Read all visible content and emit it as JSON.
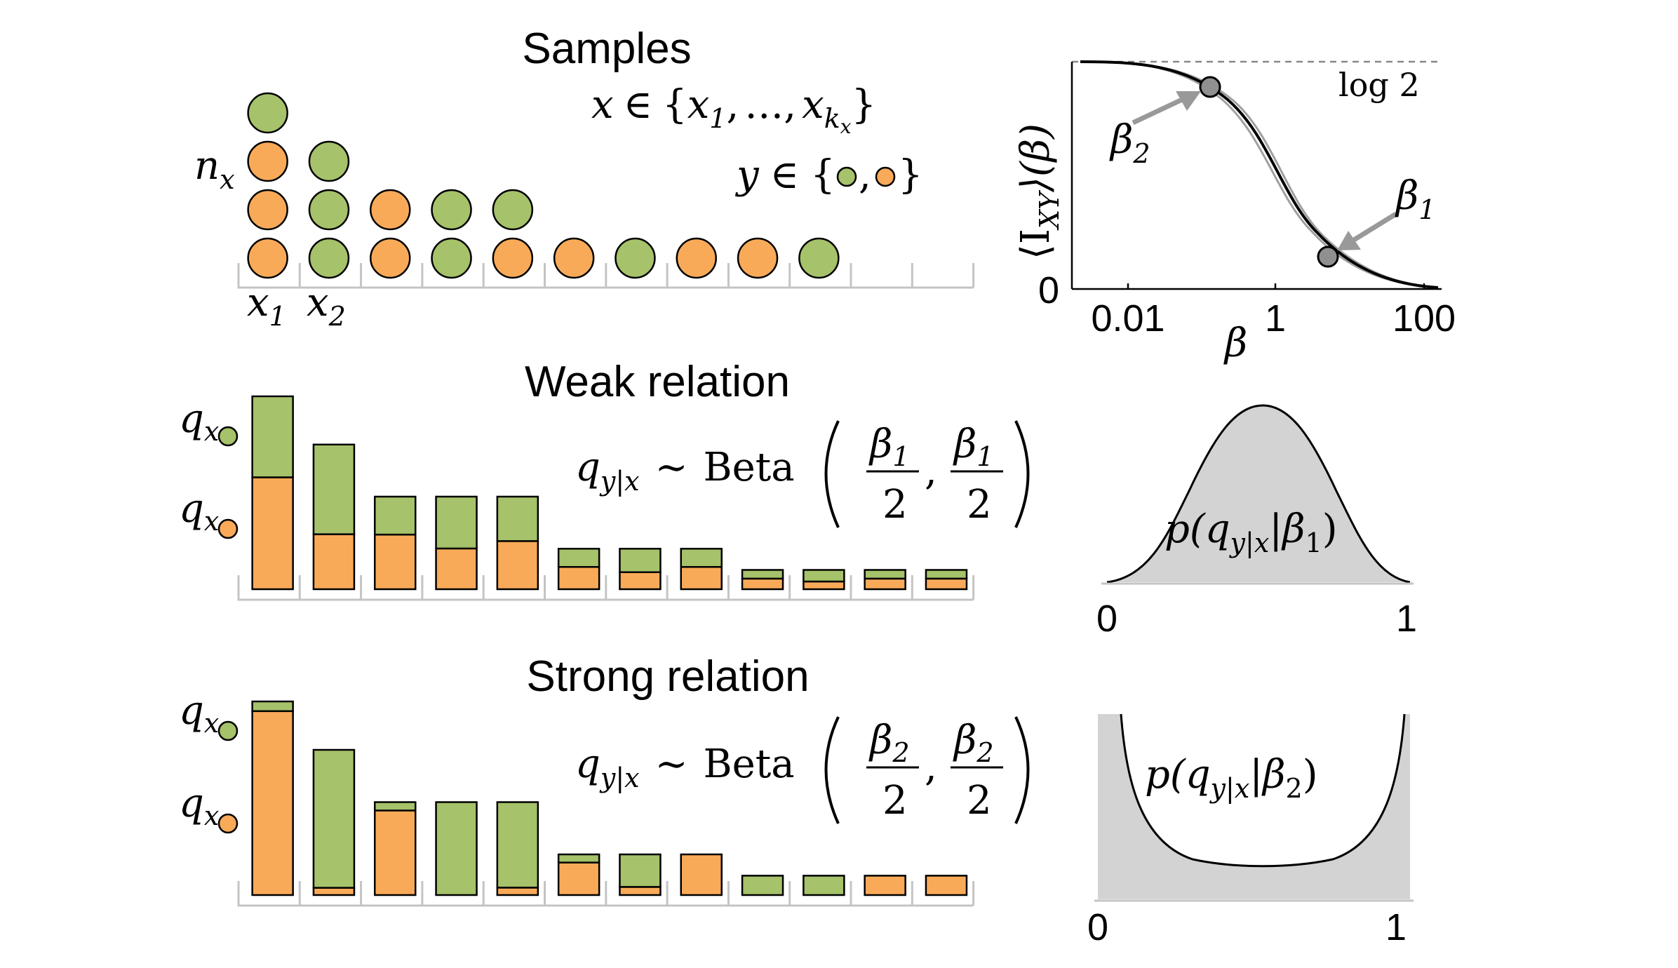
{
  "colors": {
    "green": "#a6c26a",
    "orange": "#f9aa59",
    "gray_fill": "#d3d3d3",
    "axis_gray": "#c4c4c4"
  },
  "samples": {
    "title": "Samples",
    "n_label": "n",
    "n_sub": "x",
    "x_labels": [
      {
        "base": "x",
        "sub": "1"
      },
      {
        "base": "x",
        "sub": "2"
      }
    ],
    "x_set": {
      "lhs": "x",
      "in": "∈",
      "open": "{",
      "x1": "x",
      "x1_sub": "1",
      "comma": ",",
      "dots": "…",
      "xk": "x",
      "xk_sub": "k",
      "xk_subsub": "x",
      "close": "}"
    },
    "y_set": {
      "lhs": "y",
      "in": "∈",
      "open": "{",
      "sep": ",",
      "close": "}"
    },
    "columns": [
      [
        "orange",
        "orange",
        "orange",
        "green"
      ],
      [
        "green",
        "green",
        "green"
      ],
      [
        "orange",
        "orange"
      ],
      [
        "green",
        "green"
      ],
      [
        "orange",
        "green"
      ],
      [
        "orange"
      ],
      [
        "green"
      ],
      [
        "orange"
      ],
      [
        "orange"
      ],
      [
        "green"
      ],
      [],
      []
    ]
  },
  "weak": {
    "title": "Weak relation",
    "q_label": "q",
    "q_sub": "x",
    "formula": {
      "q": "q",
      "q_sub": "y|x",
      "sim": "∼",
      "beta": "Beta",
      "b": "β",
      "b_sub": "1",
      "den": "2",
      "comma": ","
    },
    "bars": [
      {
        "orange": 0.58,
        "green": 0.42,
        "height": 1.0
      },
      {
        "orange": 0.38,
        "green": 0.62,
        "height": 0.75
      },
      {
        "orange": 0.59,
        "green": 0.41,
        "height": 0.48
      },
      {
        "orange": 0.44,
        "green": 0.56,
        "height": 0.48
      },
      {
        "orange": 0.52,
        "green": 0.48,
        "height": 0.48
      },
      {
        "orange": 0.55,
        "green": 0.45,
        "height": 0.21
      },
      {
        "orange": 0.42,
        "green": 0.58,
        "height": 0.21
      },
      {
        "orange": 0.55,
        "green": 0.45,
        "height": 0.21
      },
      {
        "orange": 0.55,
        "green": 0.45,
        "height": 0.1
      },
      {
        "orange": 0.4,
        "green": 0.6,
        "height": 0.1
      },
      {
        "orange": 0.55,
        "green": 0.45,
        "height": 0.1
      },
      {
        "orange": 0.55,
        "green": 0.45,
        "height": 0.1
      }
    ]
  },
  "strong": {
    "title": "Strong relation",
    "q_label": "q",
    "q_sub": "x",
    "formula": {
      "q": "q",
      "q_sub": "y|x",
      "sim": "∼",
      "beta": "Beta",
      "b": "β",
      "b_sub": "2",
      "den": "2",
      "comma": ","
    },
    "bars": [
      {
        "orange": 0.95,
        "green": 0.05,
        "height": 1.0
      },
      {
        "orange": 0.05,
        "green": 0.95,
        "height": 0.75
      },
      {
        "orange": 0.91,
        "green": 0.09,
        "height": 0.48
      },
      {
        "orange": 0.0,
        "green": 1.0,
        "height": 0.48
      },
      {
        "orange": 0.08,
        "green": 0.92,
        "height": 0.48
      },
      {
        "orange": 0.8,
        "green": 0.2,
        "height": 0.21
      },
      {
        "orange": 0.2,
        "green": 0.8,
        "height": 0.21
      },
      {
        "orange": 1.0,
        "green": 0.0,
        "height": 0.21
      },
      {
        "orange": 0.0,
        "green": 1.0,
        "height": 0.1
      },
      {
        "orange": 0.0,
        "green": 1.0,
        "height": 0.1
      },
      {
        "orange": 1.0,
        "green": 0.0,
        "height": 0.1
      },
      {
        "orange": 1.0,
        "green": 0.0,
        "height": 0.1
      }
    ]
  },
  "info_plot": {
    "ylabel": "⟨I",
    "ylabel_sub": "XY",
    "ylabel_tail": "⟩(β)",
    "xlabel": "β",
    "y_zero": "0",
    "x_ticks": [
      "0.01",
      "1",
      "100"
    ],
    "asymptote_label": "log 2",
    "beta_markers": [
      {
        "sym": "β",
        "sub": "2"
      },
      {
        "sym": "β",
        "sub": "1"
      }
    ]
  },
  "density_weak": {
    "label_pre": "p(q",
    "label_sub": "y|x",
    "label_mid": "|β",
    "label_sub2": "1",
    "label_post": ")",
    "ticks": [
      "0",
      "1"
    ]
  },
  "density_strong": {
    "label_pre": "p(q",
    "label_sub": "y|x",
    "label_mid": "|β",
    "label_sub2": "2",
    "label_post": ")",
    "ticks": [
      "0",
      "1"
    ]
  }
}
